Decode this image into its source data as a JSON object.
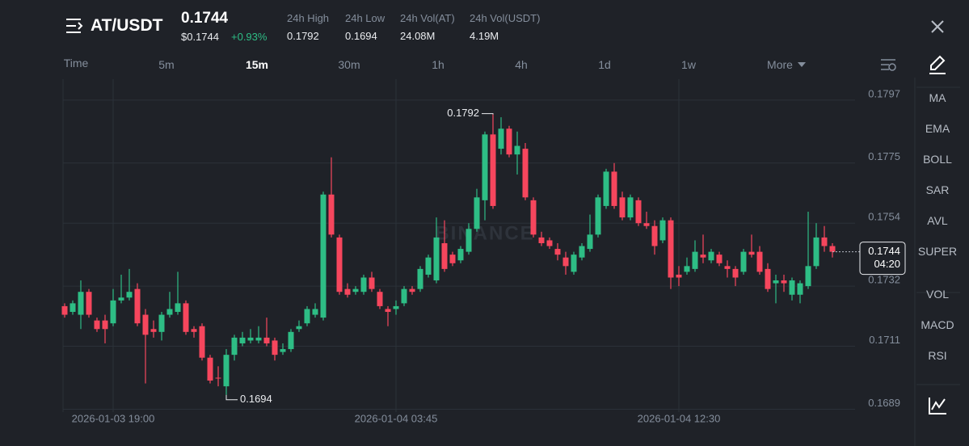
{
  "header": {
    "symbol": "AT/USDT",
    "price": "0.1744",
    "price_usd": "$0.1744",
    "change": "+0.93%",
    "stats": [
      {
        "label": "24h High",
        "value": "0.1792"
      },
      {
        "label": "24h Low",
        "value": "0.1694"
      },
      {
        "label": "24h Vol(AT)",
        "value": "24.08M"
      },
      {
        "label": "24h Vol(USDT)",
        "value": "4.19M"
      }
    ]
  },
  "intervals": [
    "Time",
    "5m",
    "15m",
    "30m",
    "1h",
    "4h",
    "1d",
    "1w",
    "More"
  ],
  "selected_interval": 2,
  "indicators": [
    "MA",
    "EMA",
    "BOLL",
    "SAR",
    "AVL",
    "SUPER",
    "VOL",
    "MACD",
    "RSI"
  ],
  "chart_data": {
    "type": "candlestick",
    "watermark": "BINANCE",
    "up_color": "#2ebd85",
    "down_color": "#f6465d",
    "ylim": [
      0.1688,
      0.18043
    ],
    "yticks": [
      0.1797,
      0.1775,
      0.1754,
      0.1732,
      0.1711,
      0.1689
    ],
    "xticks": [
      {
        "value": 6,
        "label": "2026-01-03 19:00"
      },
      {
        "value": 41,
        "label": "2026-01-04 03:45"
      },
      {
        "value": 76,
        "label": "2026-01-04 12:30"
      }
    ],
    "grid": true,
    "last_price": 0.1744,
    "countdown": "04:20",
    "high_label": 0.1792,
    "low_label": 0.1694,
    "candles": [
      [
        0.1725,
        0.1726,
        0.1721,
        0.1722
      ],
      [
        0.1723,
        0.1727,
        0.1722,
        0.1726
      ],
      [
        0.1722,
        0.1734,
        0.1717,
        0.173
      ],
      [
        0.173,
        0.1731,
        0.1721,
        0.1722
      ],
      [
        0.172,
        0.1721,
        0.1716,
        0.1717
      ],
      [
        0.172,
        0.1722,
        0.1712,
        0.1717
      ],
      [
        0.1719,
        0.1731,
        0.1718,
        0.1727
      ],
      [
        0.1727,
        0.1736,
        0.1726,
        0.1728
      ],
      [
        0.1728,
        0.1738,
        0.1727,
        0.173
      ],
      [
        0.1731,
        0.1733,
        0.1718,
        0.1719
      ],
      [
        0.1722,
        0.1724,
        0.1698,
        0.1715
      ],
      [
        0.1717,
        0.172,
        0.1714,
        0.1716
      ],
      [
        0.1716,
        0.1723,
        0.1713,
        0.1722
      ],
      [
        0.1722,
        0.173,
        0.1721,
        0.1724
      ],
      [
        0.1723,
        0.1737,
        0.1722,
        0.1726
      ],
      [
        0.1726,
        0.1727,
        0.1715,
        0.1716
      ],
      [
        0.1717,
        0.1718,
        0.1714,
        0.1716
      ],
      [
        0.1718,
        0.1719,
        0.1706,
        0.1707
      ],
      [
        0.1707,
        0.1708,
        0.1698,
        0.1699
      ],
      [
        0.17,
        0.1704,
        0.1697,
        0.17
      ],
      [
        0.1697,
        0.171,
        0.1694,
        0.1708
      ],
      [
        0.1708,
        0.1715,
        0.1706,
        0.1714
      ],
      [
        0.1712,
        0.1716,
        0.1711,
        0.1714
      ],
      [
        0.1713,
        0.1717,
        0.1712,
        0.1714
      ],
      [
        0.1713,
        0.1718,
        0.1712,
        0.1714
      ],
      [
        0.1714,
        0.1721,
        0.1711,
        0.1712
      ],
      [
        0.1713,
        0.1714,
        0.1706,
        0.1708
      ],
      [
        0.1709,
        0.1712,
        0.1708,
        0.171
      ],
      [
        0.171,
        0.1717,
        0.1709,
        0.1716
      ],
      [
        0.1717,
        0.172,
        0.1716,
        0.1718
      ],
      [
        0.1719,
        0.1725,
        0.1718,
        0.1724
      ],
      [
        0.1722,
        0.1726,
        0.1721,
        0.1724
      ],
      [
        0.1721,
        0.1765,
        0.172,
        0.1764
      ],
      [
        0.1764,
        0.1777,
        0.1749,
        0.175
      ],
      [
        0.1749,
        0.175,
        0.1729,
        0.173
      ],
      [
        0.1731,
        0.1733,
        0.1728,
        0.1729
      ],
      [
        0.173,
        0.1732,
        0.1729,
        0.1731
      ],
      [
        0.173,
        0.1736,
        0.1729,
        0.1735
      ],
      [
        0.1735,
        0.1737,
        0.173,
        0.1731
      ],
      [
        0.173,
        0.1731,
        0.1724,
        0.1725
      ],
      [
        0.1724,
        0.1725,
        0.1718,
        0.1723
      ],
      [
        0.1724,
        0.1727,
        0.1722,
        0.1725
      ],
      [
        0.1726,
        0.1732,
        0.1725,
        0.1731
      ],
      [
        0.1731,
        0.1732,
        0.1729,
        0.173
      ],
      [
        0.1731,
        0.1739,
        0.173,
        0.1738
      ],
      [
        0.1736,
        0.1743,
        0.1735,
        0.1742
      ],
      [
        0.1734,
        0.1756,
        0.1733,
        0.1749
      ],
      [
        0.1747,
        0.1755,
        0.1737,
        0.1738
      ],
      [
        0.1743,
        0.1744,
        0.1739,
        0.174
      ],
      [
        0.1741,
        0.1746,
        0.174,
        0.1745
      ],
      [
        0.1744,
        0.1754,
        0.1743,
        0.1752
      ],
      [
        0.1752,
        0.1766,
        0.1751,
        0.1763
      ],
      [
        0.1762,
        0.1786,
        0.1755,
        0.1785
      ],
      [
        0.1785,
        0.1792,
        0.1759,
        0.176
      ],
      [
        0.178,
        0.1791,
        0.1778,
        0.1787
      ],
      [
        0.1787,
        0.1788,
        0.1777,
        0.1778
      ],
      [
        0.1778,
        0.1786,
        0.1771,
        0.1781
      ],
      [
        0.178,
        0.1782,
        0.1762,
        0.1763
      ],
      [
        0.1762,
        0.1763,
        0.1749,
        0.175
      ],
      [
        0.1749,
        0.1751,
        0.1746,
        0.1747
      ],
      [
        0.1748,
        0.1749,
        0.1745,
        0.1746
      ],
      [
        0.1745,
        0.1747,
        0.1741,
        0.1743
      ],
      [
        0.1742,
        0.1744,
        0.1736,
        0.1739
      ],
      [
        0.1737,
        0.1744,
        0.1736,
        0.1743
      ],
      [
        0.1742,
        0.1747,
        0.1741,
        0.1746
      ],
      [
        0.1745,
        0.1757,
        0.1744,
        0.175
      ],
      [
        0.175,
        0.1764,
        0.1749,
        0.1763
      ],
      [
        0.176,
        0.1773,
        0.1759,
        0.1772
      ],
      [
        0.1772,
        0.1775,
        0.1759,
        0.176
      ],
      [
        0.1763,
        0.1765,
        0.1755,
        0.1756
      ],
      [
        0.1756,
        0.1764,
        0.1755,
        0.1763
      ],
      [
        0.1762,
        0.1763,
        0.1753,
        0.1754
      ],
      [
        0.1754,
        0.1758,
        0.1752,
        0.1753
      ],
      [
        0.1753,
        0.1755,
        0.1743,
        0.1746
      ],
      [
        0.1748,
        0.1756,
        0.1747,
        0.1755
      ],
      [
        0.1755,
        0.1756,
        0.1731,
        0.1735
      ],
      [
        0.1736,
        0.1739,
        0.1732,
        0.1735
      ],
      [
        0.1737,
        0.1742,
        0.1736,
        0.1739
      ],
      [
        0.1738,
        0.1748,
        0.1737,
        0.1744
      ],
      [
        0.1743,
        0.175,
        0.174,
        0.1742
      ],
      [
        0.1741,
        0.1745,
        0.174,
        0.1744
      ],
      [
        0.1743,
        0.1744,
        0.1739,
        0.174
      ],
      [
        0.1739,
        0.1741,
        0.1735,
        0.1738
      ],
      [
        0.1738,
        0.1739,
        0.1732,
        0.1735
      ],
      [
        0.1737,
        0.1745,
        0.1736,
        0.1744
      ],
      [
        0.1744,
        0.175,
        0.1742,
        0.1743
      ],
      [
        0.1744,
        0.1746,
        0.1736,
        0.1737
      ],
      [
        0.1738,
        0.174,
        0.173,
        0.1731
      ],
      [
        0.1733,
        0.1736,
        0.1726,
        0.1734
      ],
      [
        0.1734,
        0.1736,
        0.173,
        0.1733
      ],
      [
        0.1729,
        0.1735,
        0.1727,
        0.1734
      ],
      [
        0.1729,
        0.1734,
        0.1726,
        0.1733
      ],
      [
        0.1732,
        0.1758,
        0.1731,
        0.1739
      ],
      [
        0.1739,
        0.1754,
        0.1738,
        0.1749
      ],
      [
        0.1749,
        0.1753,
        0.1744,
        0.1746
      ],
      [
        0.1746,
        0.1747,
        0.1742,
        0.1744
      ]
    ]
  }
}
